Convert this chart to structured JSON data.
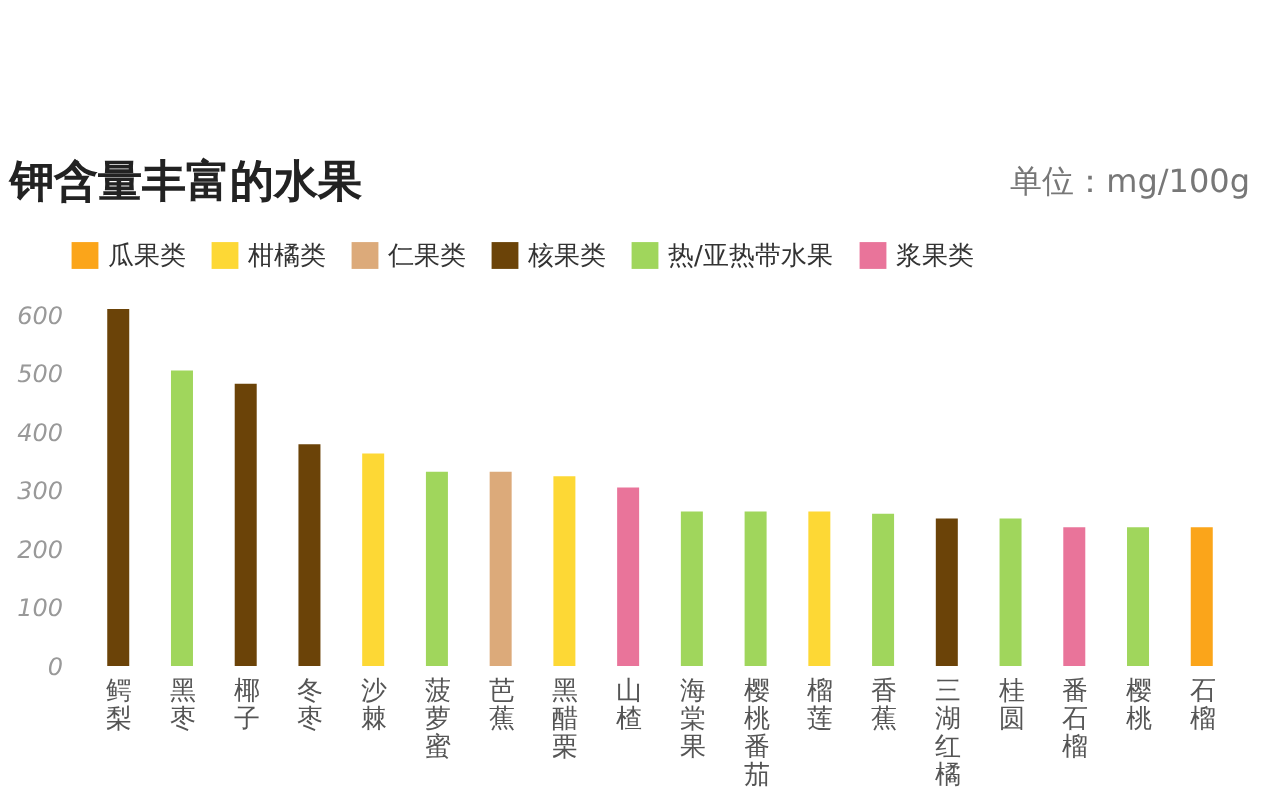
{
  "chart_data": {
    "type": "bar",
    "title": "钾含量丰富的水果",
    "ylabel": "单位：mg/100g",
    "categories": [
      "鳄梨",
      "黑枣",
      "椰子",
      "冬枣",
      "沙棘",
      "菠萝蜜",
      "芭蕉",
      "黑醋栗",
      "山楂",
      "海棠果",
      "樱桃番茄",
      "榴莲",
      "香蕉",
      "三湖红橘",
      "桂圆",
      "番石榴",
      "樱桃",
      "石榴"
    ],
    "series": [
      {
        "name": "瓜果类",
        "color": "#fba51a",
        "values": [
          null,
          null,
          null,
          null,
          null,
          null,
          null,
          null,
          null,
          null,
          null,
          null,
          null,
          null,
          null,
          null,
          null,
          237
        ]
      },
      {
        "name": "柑橘类",
        "color": "#fdd835",
        "values": [
          null,
          null,
          null,
          null,
          363,
          null,
          null,
          324,
          null,
          null,
          null,
          264,
          null,
          null,
          null,
          null,
          null,
          null
        ]
      },
      {
        "name": "仁果类",
        "color": "#dcaa7a",
        "values": [
          null,
          null,
          null,
          null,
          null,
          null,
          332,
          null,
          null,
          null,
          null,
          null,
          null,
          null,
          null,
          null,
          null,
          null
        ]
      },
      {
        "name": "核果类",
        "color": "#6b4308",
        "values": [
          610,
          null,
          482,
          379,
          null,
          null,
          null,
          null,
          null,
          null,
          null,
          null,
          null,
          252,
          null,
          null,
          null,
          null
        ]
      },
      {
        "name": "热/亚热带水果",
        "color": "#a0d65c",
        "values": [
          null,
          505,
          null,
          null,
          null,
          332,
          null,
          null,
          null,
          264,
          264,
          null,
          260,
          null,
          252,
          null,
          237,
          null
        ]
      },
      {
        "name": "浆果类",
        "color": "#e9749a",
        "values": [
          null,
          null,
          null,
          null,
          null,
          null,
          null,
          null,
          305,
          null,
          null,
          null,
          null,
          null,
          null,
          237,
          null,
          null
        ]
      }
    ],
    "ylim": [
      0,
      615
    ],
    "yticks": [
      0,
      100,
      200,
      300,
      400,
      500,
      600
    ],
    "grid": false,
    "legend": "top"
  }
}
